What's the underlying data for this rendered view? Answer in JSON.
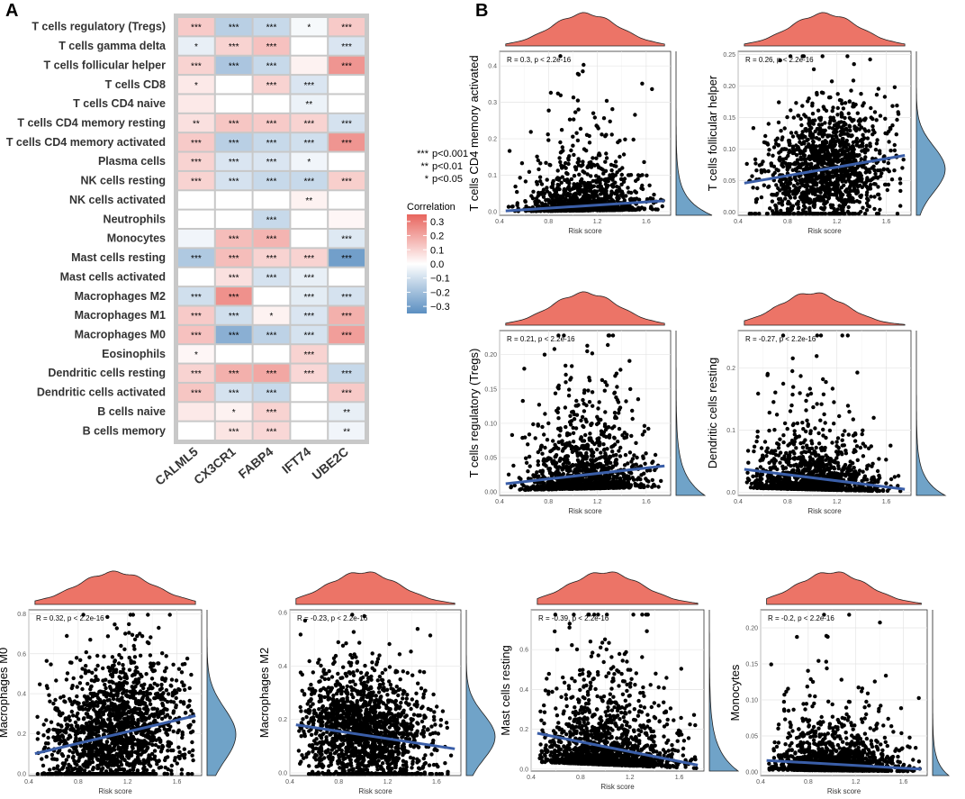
{
  "panel_labels": {
    "a": "A",
    "b": "B"
  },
  "significance_legend": [
    {
      "mark": "***",
      "text": "p<0.001"
    },
    {
      "mark": "**",
      "text": "p<0.01"
    },
    {
      "mark": "*",
      "text": "p<0.05"
    }
  ],
  "colors": {
    "positive": "#e8655e",
    "negative": "#5b8fc1",
    "neutral": "#ffffff",
    "density_top": "#ec7467",
    "density_right": "#70a3c8",
    "fit_line": "#3a5ea8",
    "point": "#000000",
    "grid_bg": "#ffffff",
    "heat_border": "#c8c8c8"
  },
  "chart_data": [
    {
      "type": "heatmap",
      "title": "",
      "columns": [
        "CALML5",
        "CX3CR1",
        "FABP4",
        "IFT74",
        "UBE2C"
      ],
      "rows": [
        "T cells regulatory (Tregs)",
        "T cells gamma delta",
        "T cells follicular helper",
        "T cells CD8",
        "T cells CD4 naive",
        "T cells CD4 memory resting",
        "T cells CD4 memory activated",
        "Plasma cells",
        "NK cells resting",
        "NK cells activated",
        "Neutrophils",
        "Monocytes",
        "Mast cells resting",
        "Mast cells activated",
        "Macrophages M2",
        "Macrophages M1",
        "Macrophages M0",
        "Eosinophils",
        "Dendritic cells resting",
        "Dendritic cells activated",
        "B cells naive",
        "B cells memory"
      ],
      "values": [
        [
          0.12,
          -0.15,
          -0.12,
          -0.02,
          0.12
        ],
        [
          -0.05,
          0.1,
          0.14,
          0.0,
          -0.08
        ],
        [
          0.1,
          -0.18,
          -0.12,
          0.03,
          0.24
        ],
        [
          0.05,
          0.0,
          0.1,
          -0.08,
          0.0
        ],
        [
          0.05,
          0.0,
          0.0,
          -0.04,
          0.0
        ],
        [
          0.07,
          0.13,
          0.12,
          0.1,
          -0.09
        ],
        [
          0.12,
          -0.15,
          -0.12,
          -0.1,
          0.24
        ],
        [
          0.1,
          -0.08,
          -0.08,
          -0.03,
          0.0
        ],
        [
          0.1,
          -0.09,
          -0.12,
          -0.12,
          0.11
        ],
        [
          0.0,
          0.0,
          0.0,
          0.03,
          0.0
        ],
        [
          0.0,
          0.0,
          -0.12,
          0.0,
          0.02
        ],
        [
          -0.03,
          0.15,
          0.17,
          0.0,
          -0.07
        ],
        [
          -0.17,
          0.15,
          0.1,
          0.1,
          -0.3
        ],
        [
          0.0,
          0.07,
          -0.09,
          -0.05,
          0.0
        ],
        [
          -0.1,
          0.25,
          0.0,
          -0.06,
          -0.09
        ],
        [
          0.12,
          -0.1,
          0.03,
          -0.08,
          0.18
        ],
        [
          0.14,
          -0.25,
          -0.14,
          -0.09,
          0.22
        ],
        [
          0.02,
          0.0,
          0.0,
          0.1,
          0.0
        ],
        [
          0.1,
          0.18,
          0.2,
          0.09,
          -0.12
        ],
        [
          0.13,
          -0.09,
          -0.12,
          0.0,
          0.12
        ],
        [
          0.05,
          0.03,
          0.1,
          0.0,
          -0.05
        ],
        [
          0.0,
          0.06,
          0.09,
          0.0,
          -0.03
        ]
      ],
      "significance": [
        [
          "***",
          "***",
          "***",
          "*",
          "***"
        ],
        [
          "*",
          "***",
          "***",
          "",
          "***"
        ],
        [
          "***",
          "***",
          "***",
          "",
          "***"
        ],
        [
          "*",
          "",
          "***",
          "***",
          ""
        ],
        [
          "",
          "",
          "",
          "**",
          ""
        ],
        [
          "**",
          "***",
          "***",
          "***",
          "***"
        ],
        [
          "***",
          "***",
          "***",
          "***",
          "***"
        ],
        [
          "***",
          "***",
          "***",
          "*",
          ""
        ],
        [
          "***",
          "***",
          "***",
          "***",
          "***"
        ],
        [
          "",
          "",
          "",
          "**",
          ""
        ],
        [
          "",
          "",
          "***",
          "",
          ""
        ],
        [
          "",
          "***",
          "***",
          "",
          "***"
        ],
        [
          "***",
          "***",
          "***",
          "***",
          "***"
        ],
        [
          "",
          "***",
          "***",
          "***",
          ""
        ],
        [
          "***",
          "***",
          "",
          "***",
          "***"
        ],
        [
          "***",
          "***",
          "*",
          "***",
          "***"
        ],
        [
          "***",
          "***",
          "***",
          "***",
          "***"
        ],
        [
          "*",
          "",
          "",
          "***",
          ""
        ],
        [
          "***",
          "***",
          "***",
          "***",
          "***"
        ],
        [
          "***",
          "***",
          "***",
          "",
          "***"
        ],
        [
          "",
          "*",
          "***",
          "",
          "**"
        ],
        [
          "",
          "***",
          "***",
          "",
          "**"
        ]
      ],
      "colorbar": {
        "title": "Correlation",
        "ticks": [
          0.3,
          0.2,
          0.1,
          0.0,
          -0.1,
          -0.2,
          -0.3
        ],
        "tick_labels": [
          "0.3",
          "0.2",
          "0.1",
          "0.0",
          "−0.1",
          "−0.2",
          "−0.3"
        ],
        "range": [
          -0.35,
          0.35
        ]
      }
    },
    {
      "type": "scatter",
      "ylabel": "T cells CD4 memory activated",
      "xlabel": "Risk score",
      "annotation": "R = 0.3, p < 2.2e-16",
      "xlim": [
        0.4,
        1.8
      ],
      "ylim": [
        -0.01,
        0.44
      ],
      "x_ticks": [
        0.4,
        0.8,
        1.2,
        1.6
      ],
      "x_tick_labels": [
        "0.4",
        "0.8",
        "1.2",
        "1.6"
      ],
      "y_ticks": [
        0,
        0.1,
        0.2,
        0.3,
        0.4
      ],
      "y_tick_labels": [
        "0.0",
        "0.1",
        "0.2",
        "0.3",
        "0.4"
      ],
      "fit_line": [
        [
          0.45,
          0.002
        ],
        [
          1.75,
          0.03
        ]
      ],
      "center": 1.1,
      "spread": 0.25,
      "y_base": 0.0,
      "y_scale": 0.06,
      "n_points": 1100,
      "skew": "low"
    },
    {
      "type": "scatter",
      "ylabel": "T cells follicular helper",
      "xlabel": "Risk score",
      "annotation": "R = 0.26, p < 2.2e-16",
      "xlim": [
        0.4,
        1.8
      ],
      "ylim": [
        -0.005,
        0.255
      ],
      "x_ticks": [
        0.4,
        0.8,
        1.2,
        1.6
      ],
      "x_tick_labels": [
        "0.4",
        "0.8",
        "1.2",
        "1.6"
      ],
      "y_ticks": [
        0,
        0.05,
        0.1,
        0.15,
        0.2,
        0.25
      ],
      "y_tick_labels": [
        "0.00",
        "0.05",
        "0.10",
        "0.15",
        "0.20",
        "0.25"
      ],
      "fit_line": [
        [
          0.45,
          0.046
        ],
        [
          1.75,
          0.09
        ]
      ],
      "center": 1.1,
      "spread": 0.25,
      "y_base": 0.0,
      "y_scale": 0.06,
      "n_points": 1400,
      "skew": "mid"
    },
    {
      "type": "scatter",
      "ylabel": "T cells regulatory (Tregs)",
      "xlabel": "Risk score",
      "annotation": "R = 0.21, p < 2.2e-16",
      "xlim": [
        0.4,
        1.8
      ],
      "ylim": [
        -0.005,
        0.235
      ],
      "x_ticks": [
        0.4,
        0.8,
        1.2,
        1.6
      ],
      "x_tick_labels": [
        "0.4",
        "0.8",
        "1.2",
        "1.6"
      ],
      "y_ticks": [
        0,
        0.05,
        0.1,
        0.15,
        0.2
      ],
      "y_tick_labels": [
        "0.00",
        "0.05",
        "0.10",
        "0.15",
        "0.20"
      ],
      "fit_line": [
        [
          0.45,
          0.012
        ],
        [
          1.75,
          0.038
        ]
      ],
      "center": 1.1,
      "spread": 0.25,
      "y_base": 0.0,
      "y_scale": 0.04,
      "n_points": 1300,
      "skew": "low"
    },
    {
      "type": "scatter",
      "ylabel": "Dendritic cells resting",
      "xlabel": "Risk score",
      "annotation": "R = -0.27, p < 2.2e-16",
      "xlim": [
        0.4,
        1.8
      ],
      "ylim": [
        -0.005,
        0.26
      ],
      "x_ticks": [
        0.4,
        0.8,
        1.2,
        1.6
      ],
      "x_tick_labels": [
        "0.4",
        "0.8",
        "1.2",
        "1.6"
      ],
      "y_ticks": [
        0,
        0.1,
        0.2
      ],
      "y_tick_labels": [
        "0.0",
        "0.1",
        "0.2"
      ],
      "fit_line": [
        [
          0.45,
          0.037
        ],
        [
          1.75,
          0.005
        ]
      ],
      "center": 1.0,
      "spread": 0.25,
      "y_base": 0.0,
      "y_scale": 0.035,
      "n_points": 1300,
      "skew": "low"
    },
    {
      "type": "scatter",
      "ylabel": "Macrophages M0",
      "xlabel": "Risk score",
      "annotation": "R = 0.32, p < 2.2e-16",
      "xlim": [
        0.4,
        1.8
      ],
      "ylim": [
        -0.01,
        0.82
      ],
      "x_ticks": [
        0.4,
        0.8,
        1.2,
        1.6
      ],
      "x_tick_labels": [
        "0.4",
        "0.8",
        "1.2",
        "1.6"
      ],
      "y_ticks": [
        0,
        0.2,
        0.4,
        0.6,
        0.8
      ],
      "y_tick_labels": [
        "0.0",
        "0.2",
        "0.4",
        "0.6",
        "0.8"
      ],
      "fit_line": [
        [
          0.45,
          0.1
        ],
        [
          1.75,
          0.29
        ]
      ],
      "center": 1.1,
      "spread": 0.28,
      "y_base": 0.0,
      "y_scale": 0.22,
      "n_points": 1700,
      "skew": "mid"
    },
    {
      "type": "scatter",
      "ylabel": "Macrophages M2",
      "xlabel": "Risk score",
      "annotation": "R = -0.23, p < 2.2e-16",
      "xlim": [
        0.4,
        1.8
      ],
      "ylim": [
        -0.01,
        0.61
      ],
      "x_ticks": [
        0.4,
        0.8,
        1.2,
        1.6
      ],
      "x_tick_labels": [
        "0.4",
        "0.8",
        "1.2",
        "1.6"
      ],
      "y_ticks": [
        0,
        0.2,
        0.4,
        0.6
      ],
      "y_tick_labels": [
        "0.0",
        "0.2",
        "0.4",
        "0.6"
      ],
      "fit_line": [
        [
          0.45,
          0.18
        ],
        [
          1.75,
          0.09
        ]
      ],
      "center": 1.0,
      "spread": 0.27,
      "y_base": 0.0,
      "y_scale": 0.14,
      "n_points": 1700,
      "skew": "mid"
    },
    {
      "type": "scatter",
      "ylabel": "Mast cells resting",
      "xlabel": "Risk score",
      "annotation": "R = -0.39, p < 2.2e-16",
      "xlim": [
        0.4,
        1.8
      ],
      "ylim": [
        -0.01,
        0.8
      ],
      "x_ticks": [
        0.4,
        0.8,
        1.2,
        1.6
      ],
      "x_tick_labels": [
        "0.4",
        "0.8",
        "1.2",
        "1.6"
      ],
      "y_ticks": [
        0,
        0.2,
        0.4,
        0.6
      ],
      "y_tick_labels": [
        "0.0",
        "0.2",
        "0.4",
        "0.6"
      ],
      "fit_line": [
        [
          0.45,
          0.18
        ],
        [
          1.75,
          0.02
        ]
      ],
      "center": 1.0,
      "spread": 0.27,
      "y_base": 0.0,
      "y_scale": 0.15,
      "n_points": 1600,
      "skew": "low"
    },
    {
      "type": "scatter",
      "ylabel": "Monocytes",
      "xlabel": "Risk score",
      "annotation": "R = -0.2, p < 2.2e-16",
      "xlim": [
        0.4,
        1.8
      ],
      "ylim": [
        -0.005,
        0.225
      ],
      "x_ticks": [
        0.4,
        0.8,
        1.2,
        1.6
      ],
      "x_tick_labels": [
        "0.4",
        "0.8",
        "1.2",
        "1.6"
      ],
      "y_ticks": [
        0,
        0.05,
        0.1,
        0.15,
        0.2
      ],
      "y_tick_labels": [
        "0.00",
        "0.05",
        "0.10",
        "0.15",
        "0.20"
      ],
      "fit_line": [
        [
          0.45,
          0.016
        ],
        [
          1.75,
          0.004
        ]
      ],
      "center": 1.0,
      "spread": 0.27,
      "y_base": 0.0,
      "y_scale": 0.025,
      "n_points": 1300,
      "skew": "low"
    }
  ]
}
